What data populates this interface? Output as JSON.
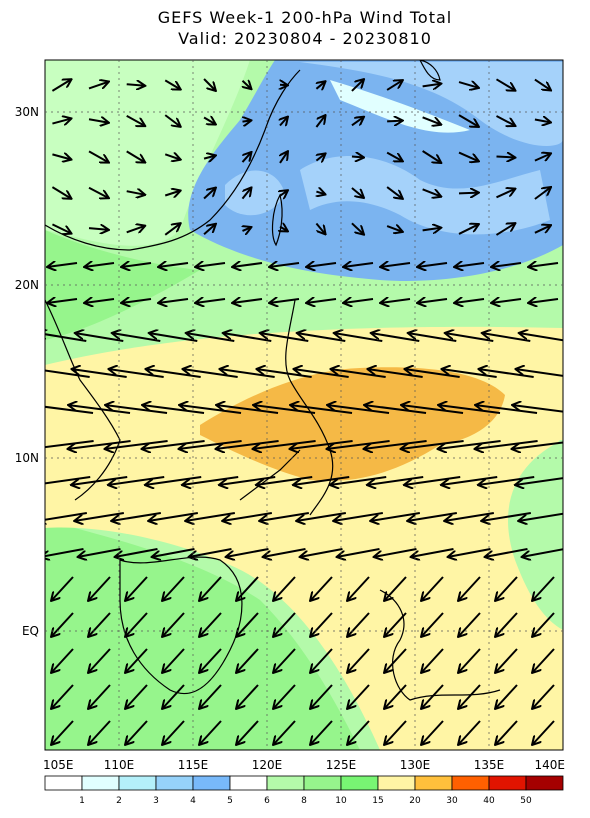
{
  "header": {
    "title": "GEFS Week-1 200-hPa Wind Total",
    "subtitle": "Valid: 20230804 - 20230810"
  },
  "map": {
    "lat_labels": [
      "30N",
      "20N",
      "10N",
      "EQ"
    ],
    "lon_labels": [
      "105E",
      "110E",
      "115E",
      "120E",
      "125E",
      "130E",
      "135E",
      "140E"
    ]
  },
  "colorbar": {
    "labels": [
      "1",
      "2",
      "3",
      "4",
      "5",
      "6",
      "8",
      "10",
      "15",
      "20",
      "30",
      "40",
      "50"
    ]
  }
}
